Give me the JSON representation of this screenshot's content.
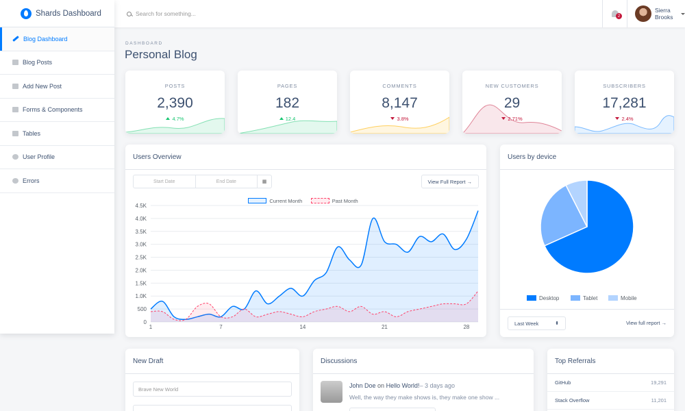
{
  "brand": {
    "title": "Shards Dashboard"
  },
  "sidebar": {
    "items": [
      {
        "label": "Blog Dashboard",
        "icon": "pencil-icon"
      },
      {
        "label": "Blog Posts",
        "icon": "list-icon"
      },
      {
        "label": "Add New Post",
        "icon": "note-add-icon"
      },
      {
        "label": "Forms & Components",
        "icon": "grid-icon"
      },
      {
        "label": "Tables",
        "icon": "table-icon"
      },
      {
        "label": "User Profile",
        "icon": "person-icon"
      },
      {
        "label": "Errors",
        "icon": "error-icon"
      }
    ]
  },
  "topbar": {
    "search_placeholder": "Search for something...",
    "notif_count": "2",
    "user_name": "Sierra Brooks"
  },
  "page": {
    "subtitle": "DASHBOARD",
    "title": "Personal Blog"
  },
  "stats": [
    {
      "label": "POSTS",
      "value": "2,390",
      "change": "4.7%",
      "direction": "up",
      "color": "#17c671"
    },
    {
      "label": "PAGES",
      "value": "182",
      "change": "12.4",
      "direction": "up",
      "color": "#17c671"
    },
    {
      "label": "COMMENTS",
      "value": "8,147",
      "change": "3.8%",
      "direction": "down",
      "color": "#ffb400"
    },
    {
      "label": "NEW CUSTOMERS",
      "value": "29",
      "change": "2.71%",
      "direction": "down",
      "color": "#c4183c"
    },
    {
      "label": "SUBSCRIBERS",
      "value": "17,281",
      "change": "2.4%",
      "direction": "down",
      "color": "#007bff"
    }
  ],
  "overview": {
    "title": "Users Overview",
    "start_date": "Start Date",
    "end_date": "End Date",
    "view_report": "View Full Report →"
  },
  "devices": {
    "title": "Users by device",
    "range": "Last Week",
    "view_report": "View full report →"
  },
  "draft": {
    "title": "New Draft",
    "placeholder": "Brave New World"
  },
  "discussions": {
    "title": "Discussions",
    "author": "John Doe",
    "on": "on",
    "post": "Hello World!",
    "time": "– 3 days ago",
    "body": "Well, the way they make shows is, they make one show ..."
  },
  "referrals": {
    "title": "Top Referrals",
    "rows": [
      {
        "name": "GitHub",
        "value": "19,291"
      },
      {
        "name": "Stack Overflow",
        "value": "11,201"
      }
    ]
  },
  "chart_data": [
    {
      "type": "line",
      "title": "Users Overview",
      "x": [
        1,
        2,
        3,
        4,
        5,
        6,
        7,
        8,
        9,
        10,
        11,
        12,
        13,
        14,
        15,
        16,
        17,
        18,
        19,
        20,
        21,
        22,
        23,
        24,
        25,
        26,
        27,
        28,
        29
      ],
      "x_ticks": [
        "1",
        "7",
        "14",
        "21",
        "28"
      ],
      "y_ticks": [
        "0",
        "500",
        "1.0K",
        "1.5K",
        "2.0K",
        "2.5K",
        "3.0K",
        "3.5K",
        "4.0K",
        "4.5K"
      ],
      "ylim": [
        0,
        4500
      ],
      "grid": true,
      "legend_position": "top",
      "series": [
        {
          "name": "Current Month",
          "color": "#007bff",
          "values": [
            500,
            800,
            200,
            100,
            200,
            300,
            200,
            600,
            500,
            1200,
            700,
            1000,
            1300,
            1000,
            1600,
            1900,
            2900,
            2400,
            2200,
            4000,
            3100,
            3000,
            2700,
            3300,
            3100,
            3400,
            2800,
            3200,
            4300
          ]
        },
        {
          "name": "Past Month",
          "color": "#ff4169",
          "values": [
            400,
            400,
            100,
            100,
            600,
            700,
            200,
            200,
            500,
            200,
            300,
            400,
            300,
            200,
            400,
            500,
            600,
            400,
            600,
            300,
            400,
            200,
            400,
            500,
            600,
            700,
            700,
            700,
            1200
          ]
        }
      ]
    },
    {
      "type": "pie",
      "title": "Users by device",
      "categories": [
        "Desktop",
        "Tablet",
        "Mobile"
      ],
      "values": [
        68.3,
        24.2,
        7.5
      ],
      "colors": [
        "#007bff",
        "#7cb5ff",
        "#b3d4ff"
      ],
      "legend_position": "bottom"
    }
  ]
}
